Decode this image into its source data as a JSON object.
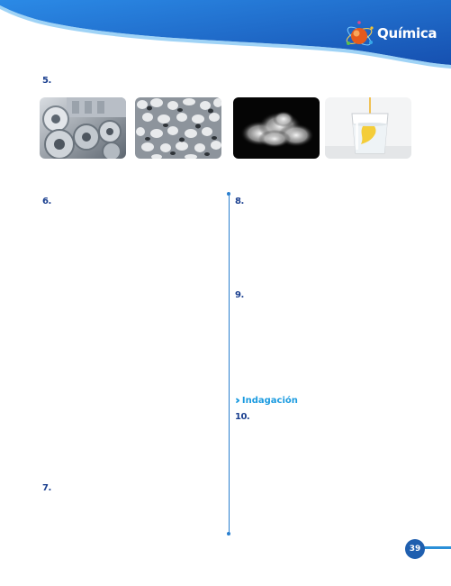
{
  "header": {
    "subject": "Química"
  },
  "questions": {
    "q5": "5.",
    "q6": "6.",
    "q7": "7.",
    "q8": "8.",
    "q9": "9.",
    "q10": "10."
  },
  "photos": [
    {
      "name": "steel-rolls-photo"
    },
    {
      "name": "gravel-photo"
    },
    {
      "name": "smoke-photo"
    },
    {
      "name": "glass-liquid-photo"
    }
  ],
  "section": {
    "title": "Indagación",
    "icon": "double-chevron-icon"
  },
  "footer": {
    "page_number": "39"
  },
  "colors": {
    "header_blue": "#1f6fd1",
    "accent_cyan": "#1b9be0",
    "question_blue": "#1a3f8f",
    "badge_blue": "#1f5faf"
  }
}
